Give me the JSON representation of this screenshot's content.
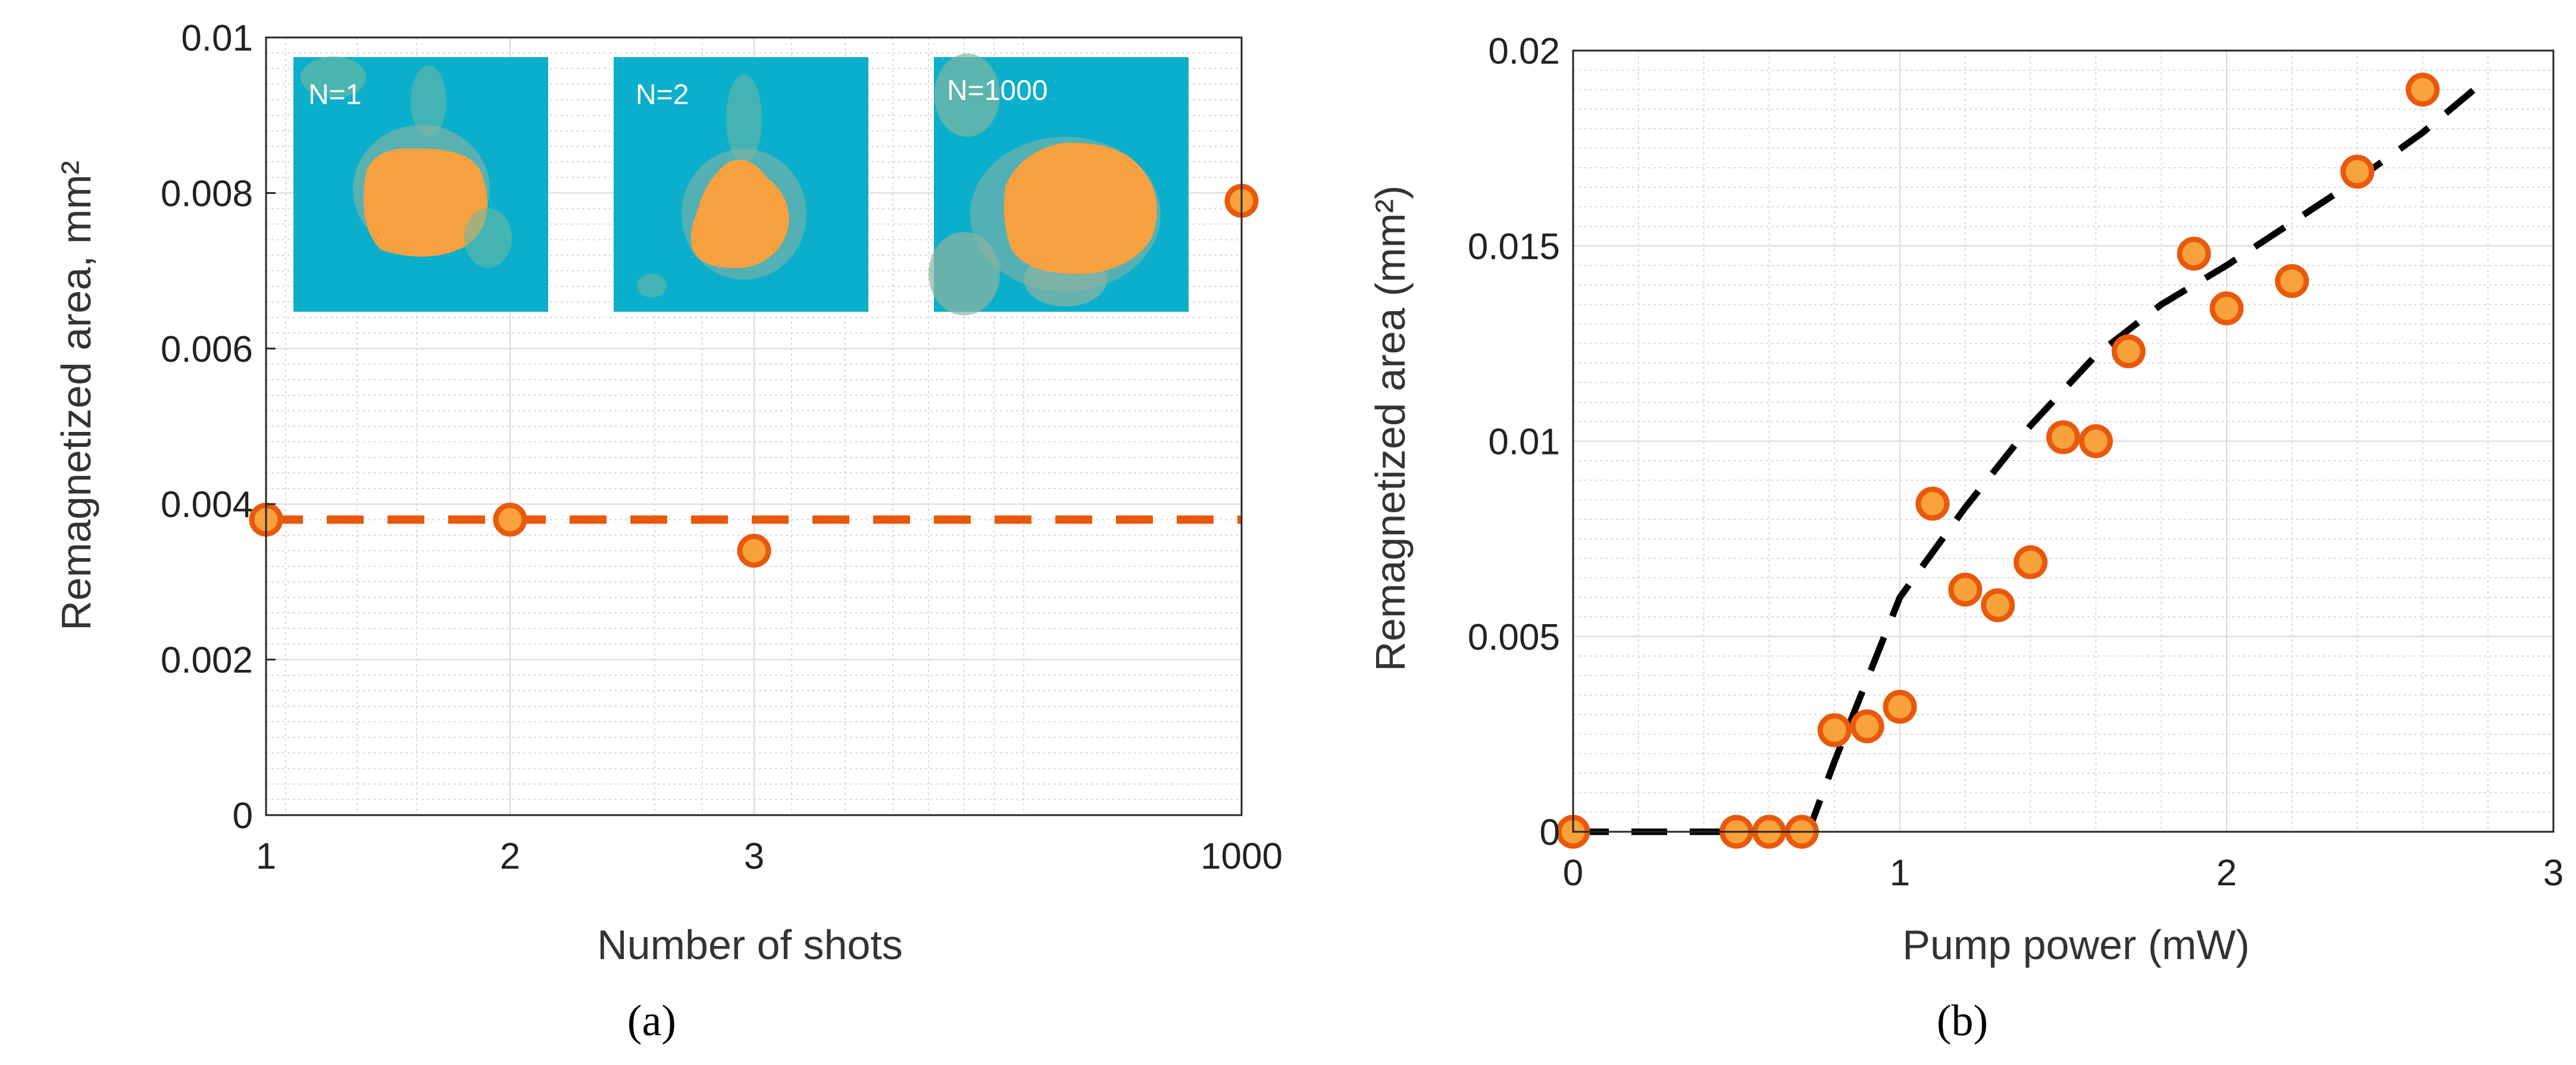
{
  "chart_data": [
    {
      "type": "scatter",
      "panel_label": "(a)",
      "xlabel": "Number of shots",
      "ylabel": "Remagnetized area, mm²",
      "categories": [
        "1",
        "2",
        "3",
        "1000"
      ],
      "ylim": [
        0,
        0.01
      ],
      "ytick_labels": [
        "0",
        "0.002",
        "0.004",
        "0.006",
        "0.008",
        "0.01"
      ],
      "grid": true,
      "series": [
        {
          "values": [
            0.0038,
            0.0038,
            0.0034,
            0.0079
          ]
        }
      ],
      "reference_line": {
        "y": 0.0038,
        "style": "dashed"
      },
      "insets": [
        {
          "label": "N=1"
        },
        {
          "label": "N=2"
        },
        {
          "label": "N=1000"
        }
      ]
    },
    {
      "type": "scatter",
      "panel_label": "(b)",
      "xlabel": "Pump power (mW)",
      "ylabel": "Remagnetized area (mm²)",
      "xlim": [
        0,
        3
      ],
      "ylim": [
        0,
        0.02
      ],
      "xtick_labels": [
        "0",
        "1",
        "2",
        "3"
      ],
      "ytick_labels": [
        "0",
        "0.005",
        "0.01",
        "0.015",
        "0.02"
      ],
      "grid": true,
      "series": [
        {
          "x": [
            0,
            0.5,
            0.6,
            0.7,
            0.8,
            0.9,
            1.0,
            1.1,
            1.2,
            1.3,
            1.4,
            1.5,
            1.6,
            1.7,
            1.9,
            2.0,
            2.2,
            2.4,
            2.6
          ],
          "y": [
            0,
            0,
            0,
            0,
            0.0026,
            0.0027,
            0.0032,
            0.0084,
            0.0062,
            0.0058,
            0.0069,
            0.0101,
            0.01,
            0.0123,
            0.0148,
            0.0134,
            0.0141,
            0.0169,
            0.019
          ]
        }
      ],
      "fit_line": {
        "style": "dashed",
        "x": [
          0,
          0.72,
          0.8,
          1.0,
          1.2,
          1.4,
          1.6,
          1.8,
          2.0,
          2.2,
          2.4,
          2.6,
          2.8
        ],
        "y": [
          0,
          0,
          0.0018,
          0.006,
          0.0083,
          0.0104,
          0.0122,
          0.0135,
          0.0145,
          0.0156,
          0.0167,
          0.0179,
          0.0193
        ]
      }
    }
  ],
  "colors": {
    "marker_fill": "#F7A23A",
    "marker_edge": "#E8590C",
    "ref_line_a": "#E8590C",
    "fit_line_b": "#000000",
    "inset_background": "#0BAFCB",
    "inset_blob": "#F7A040",
    "grid": "#D9D9D9",
    "axis": "#262626"
  }
}
